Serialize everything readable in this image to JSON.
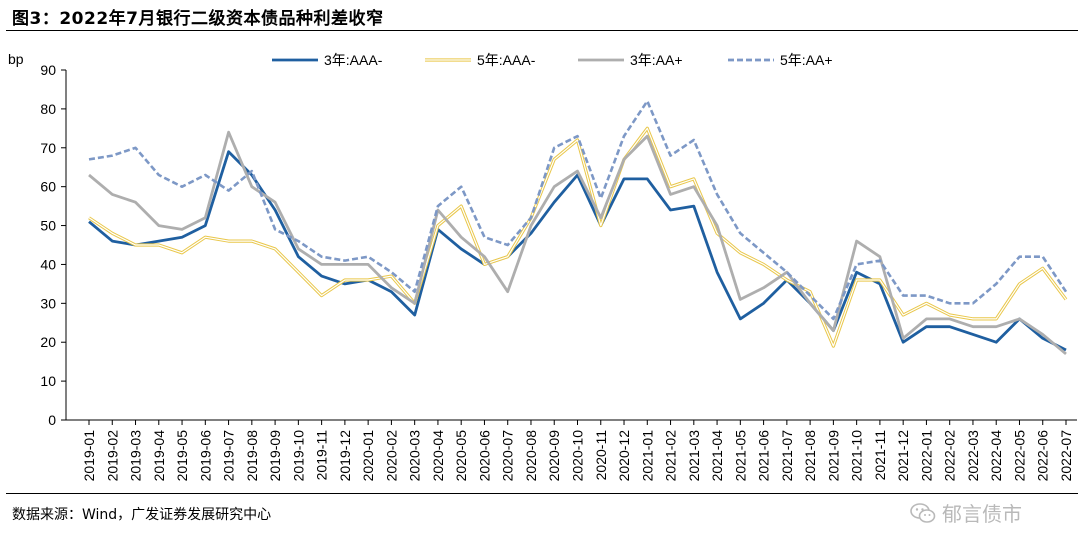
{
  "header": {
    "title": "图3：2022年7月银行二级资本债品种利差收窄"
  },
  "footer": {
    "source": "数据来源：Wind，广发证券发展研究中心",
    "watermark": "郁言债市"
  },
  "chart_data": {
    "type": "line",
    "ylabel": "bp",
    "ylim": [
      0,
      90
    ],
    "yticks": [
      "0",
      "10",
      "20",
      "30",
      "40",
      "50",
      "60",
      "70",
      "80",
      "90"
    ],
    "categories": [
      "2019-01",
      "2019-02",
      "2019-03",
      "2019-04",
      "2019-05",
      "2019-06",
      "2019-07",
      "2019-08",
      "2019-09",
      "2019-10",
      "2019-11",
      "2019-12",
      "2020-01",
      "2020-02",
      "2020-03",
      "2020-04",
      "2020-05",
      "2020-06",
      "2020-07",
      "2020-08",
      "2020-09",
      "2020-10",
      "2020-11",
      "2020-12",
      "2021-01",
      "2021-02",
      "2021-03",
      "2021-04",
      "2021-05",
      "2021-06",
      "2021-07",
      "2021-08",
      "2021-09",
      "2021-10",
      "2021-11",
      "2021-12",
      "2022-01",
      "2022-02",
      "2022-03",
      "2022-04",
      "2022-05",
      "2022-06",
      "2022-07"
    ],
    "legend_position": "top",
    "series": [
      {
        "name": "3年:AAA-",
        "color": "#1f5fa0",
        "style": "solid",
        "values": [
          51,
          46,
          45,
          46,
          47,
          50,
          69,
          63,
          54,
          42,
          37,
          35,
          36,
          33,
          27,
          49,
          44,
          40,
          42,
          48,
          56,
          63,
          50,
          62,
          62,
          54,
          55,
          38,
          26,
          30,
          36,
          30,
          23,
          38,
          35,
          20,
          24,
          24,
          22,
          20,
          26,
          21,
          18
        ]
      },
      {
        "name": "5年:AAA-",
        "color": "#e9c74a",
        "style": "double",
        "values": [
          52,
          48,
          45,
          45,
          43,
          47,
          46,
          46,
          44,
          38,
          32,
          36,
          36,
          37,
          30,
          50,
          55,
          40,
          42,
          52,
          67,
          72,
          50,
          67,
          75,
          60,
          62,
          48,
          43,
          40,
          36,
          33,
          19,
          36,
          36,
          27,
          30,
          27,
          26,
          26,
          35,
          39,
          31
        ]
      },
      {
        "name": "3年:AA+",
        "color": "#aeaeae",
        "style": "solid",
        "values": [
          63,
          58,
          56,
          50,
          49,
          52,
          74,
          60,
          56,
          44,
          40,
          40,
          40,
          34,
          30,
          54,
          47,
          42,
          33,
          50,
          60,
          64,
          52,
          67,
          73,
          58,
          60,
          50,
          31,
          34,
          38,
          30,
          23,
          46,
          42,
          21,
          26,
          26,
          24,
          24,
          26,
          22,
          17
        ]
      },
      {
        "name": "5年:AA+",
        "color": "#7d98c6",
        "style": "dashed",
        "values": [
          67,
          68,
          70,
          63,
          60,
          63,
          59,
          64,
          49,
          46,
          42,
          41,
          42,
          38,
          33,
          55,
          60,
          47,
          45,
          52,
          70,
          73,
          57,
          73,
          82,
          68,
          72,
          58,
          48,
          43,
          38,
          32,
          26,
          40,
          41,
          32,
          32,
          30,
          30,
          35,
          42,
          42,
          33
        ]
      }
    ]
  }
}
